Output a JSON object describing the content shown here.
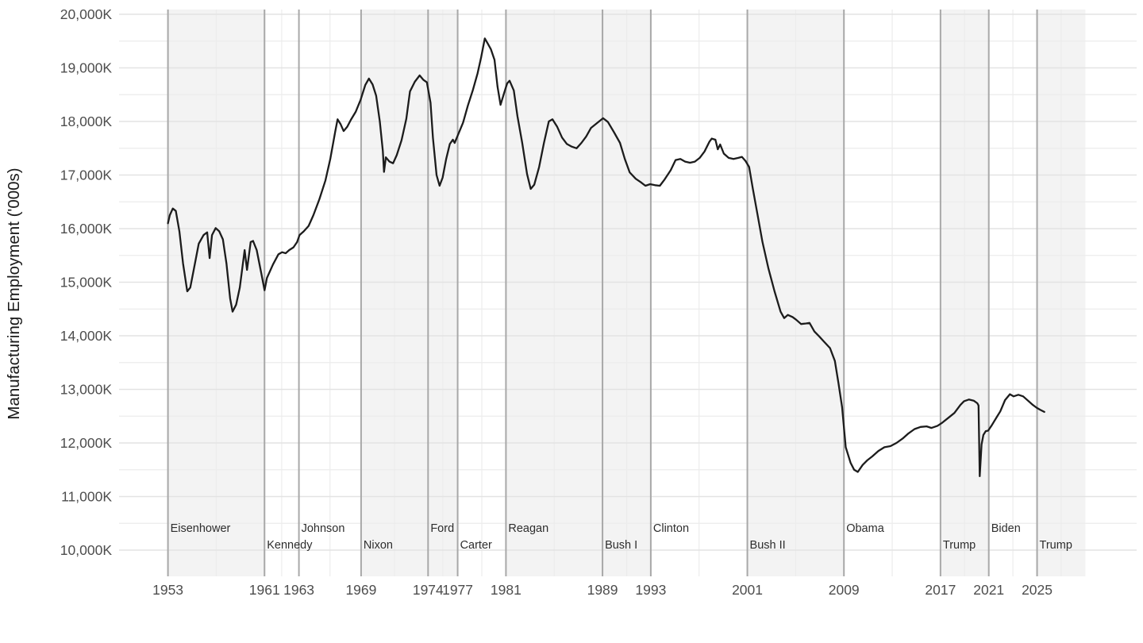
{
  "chart_data": {
    "type": "line",
    "title": "",
    "ylabel": "Manufacturing Employment ('000s)",
    "legend_position": "none",
    "grid": "on",
    "x_axis": {
      "ticks": [
        {
          "label": "1953",
          "year": 1953.05
        },
        {
          "label": "1961",
          "year": 1961.05
        },
        {
          "label": "1963",
          "year": 1963.9
        },
        {
          "label": "1969",
          "year": 1969.05
        },
        {
          "label": "1974",
          "year": 1974.6
        },
        {
          "label": "1977",
          "year": 1977.05
        },
        {
          "label": "1981",
          "year": 1981.05
        },
        {
          "label": "1989",
          "year": 1989.05
        },
        {
          "label": "1993",
          "year": 1993.05
        },
        {
          "label": "2001",
          "year": 2001.05
        },
        {
          "label": "2009",
          "year": 2009.05
        },
        {
          "label": "2017",
          "year": 2017.05
        },
        {
          "label": "2021",
          "year": 2021.05
        },
        {
          "label": "2025",
          "year": 2025.05
        }
      ],
      "range_years": [
        1949.0,
        2033.3
      ]
    },
    "y_axis": {
      "ticks": [
        {
          "label": "10,000K",
          "value": 10000
        },
        {
          "label": "11,000K",
          "value": 11000
        },
        {
          "label": "12,000K",
          "value": 12000
        },
        {
          "label": "13,000K",
          "value": 13000
        },
        {
          "label": "14,000K",
          "value": 14000
        },
        {
          "label": "15,000K",
          "value": 15000
        },
        {
          "label": "16,000K",
          "value": 16000
        },
        {
          "label": "17,000K",
          "value": 17000
        },
        {
          "label": "18,000K",
          "value": 18000
        },
        {
          "label": "19,000K",
          "value": 19000
        },
        {
          "label": "20,000K",
          "value": 20000
        }
      ],
      "minor_step": 500,
      "range": [
        10000,
        20000
      ]
    },
    "presidents": [
      {
        "name": "Eisenhower",
        "start": 1953.05,
        "end": 1961.05,
        "party": "R",
        "label_row": "upper"
      },
      {
        "name": "Kennedy",
        "start": 1961.05,
        "end": 1963.9,
        "party": "D",
        "label_row": "lower"
      },
      {
        "name": "Johnson",
        "start": 1963.9,
        "end": 1969.05,
        "party": "D",
        "label_row": "upper"
      },
      {
        "name": "Nixon",
        "start": 1969.05,
        "end": 1974.6,
        "party": "R",
        "label_row": "lower"
      },
      {
        "name": "Ford",
        "start": 1974.6,
        "end": 1977.05,
        "party": "R",
        "label_row": "upper"
      },
      {
        "name": "Carter",
        "start": 1977.05,
        "end": 1981.05,
        "party": "D",
        "label_row": "lower"
      },
      {
        "name": "Reagan",
        "start": 1981.05,
        "end": 1989.05,
        "party": "R",
        "label_row": "upper"
      },
      {
        "name": "Bush I",
        "start": 1989.05,
        "end": 1993.05,
        "party": "R",
        "label_row": "lower"
      },
      {
        "name": "Clinton",
        "start": 1993.05,
        "end": 2001.05,
        "party": "D",
        "label_row": "upper"
      },
      {
        "name": "Bush II",
        "start": 2001.05,
        "end": 2009.05,
        "party": "R",
        "label_row": "lower"
      },
      {
        "name": "Obama",
        "start": 2009.05,
        "end": 2017.05,
        "party": "D",
        "label_row": "upper"
      },
      {
        "name": "Trump",
        "start": 2017.05,
        "end": 2021.05,
        "party": "R",
        "label_row": "lower"
      },
      {
        "name": "Biden",
        "start": 2021.05,
        "end": 2025.05,
        "party": "D",
        "label_row": "upper"
      },
      {
        "name": "Trump",
        "start": 2025.05,
        "end": 2029.05,
        "party": "R",
        "label_row": "lower"
      }
    ],
    "series": [
      {
        "name": "Manufacturing Employment",
        "points": [
          [
            1953.05,
            16100
          ],
          [
            1953.2,
            16250
          ],
          [
            1953.45,
            16375
          ],
          [
            1953.7,
            16330
          ],
          [
            1954.0,
            15950
          ],
          [
            1954.3,
            15350
          ],
          [
            1954.65,
            14830
          ],
          [
            1954.9,
            14900
          ],
          [
            1955.2,
            15250
          ],
          [
            1955.6,
            15720
          ],
          [
            1956.0,
            15880
          ],
          [
            1956.3,
            15930
          ],
          [
            1956.5,
            15450
          ],
          [
            1956.7,
            15880
          ],
          [
            1957.0,
            16010
          ],
          [
            1957.3,
            15950
          ],
          [
            1957.6,
            15800
          ],
          [
            1957.9,
            15350
          ],
          [
            1958.2,
            14700
          ],
          [
            1958.4,
            14450
          ],
          [
            1958.7,
            14580
          ],
          [
            1959.0,
            14900
          ],
          [
            1959.4,
            15600
          ],
          [
            1959.6,
            15230
          ],
          [
            1959.9,
            15750
          ],
          [
            1960.1,
            15770
          ],
          [
            1960.4,
            15600
          ],
          [
            1960.8,
            15150
          ],
          [
            1961.05,
            14850
          ],
          [
            1961.25,
            15080
          ],
          [
            1961.75,
            15330
          ],
          [
            1962.2,
            15520
          ],
          [
            1962.5,
            15560
          ],
          [
            1962.8,
            15540
          ],
          [
            1963.1,
            15600
          ],
          [
            1963.45,
            15650
          ],
          [
            1963.75,
            15750
          ],
          [
            1963.95,
            15880
          ],
          [
            1964.3,
            15950
          ],
          [
            1964.7,
            16050
          ],
          [
            1965.1,
            16250
          ],
          [
            1965.6,
            16550
          ],
          [
            1966.1,
            16900
          ],
          [
            1966.5,
            17300
          ],
          [
            1966.9,
            17800
          ],
          [
            1967.1,
            18040
          ],
          [
            1967.35,
            17950
          ],
          [
            1967.6,
            17820
          ],
          [
            1967.9,
            17900
          ],
          [
            1968.2,
            18030
          ],
          [
            1968.6,
            18180
          ],
          [
            1969.0,
            18400
          ],
          [
            1969.4,
            18680
          ],
          [
            1969.7,
            18800
          ],
          [
            1970.0,
            18690
          ],
          [
            1970.3,
            18480
          ],
          [
            1970.6,
            18000
          ],
          [
            1970.85,
            17450
          ],
          [
            1970.95,
            17060
          ],
          [
            1971.1,
            17330
          ],
          [
            1971.4,
            17250
          ],
          [
            1971.7,
            17220
          ],
          [
            1972.0,
            17370
          ],
          [
            1972.4,
            17650
          ],
          [
            1972.8,
            18050
          ],
          [
            1973.1,
            18560
          ],
          [
            1973.5,
            18740
          ],
          [
            1973.9,
            18860
          ],
          [
            1974.2,
            18780
          ],
          [
            1974.5,
            18730
          ],
          [
            1974.8,
            18350
          ],
          [
            1975.0,
            17700
          ],
          [
            1975.3,
            17000
          ],
          [
            1975.55,
            16800
          ],
          [
            1975.8,
            16950
          ],
          [
            1976.1,
            17300
          ],
          [
            1976.4,
            17580
          ],
          [
            1976.65,
            17660
          ],
          [
            1976.8,
            17600
          ],
          [
            1977.1,
            17760
          ],
          [
            1977.5,
            17980
          ],
          [
            1977.9,
            18300
          ],
          [
            1978.3,
            18580
          ],
          [
            1978.7,
            18900
          ],
          [
            1979.0,
            19200
          ],
          [
            1979.3,
            19550
          ],
          [
            1979.55,
            19450
          ],
          [
            1979.8,
            19350
          ],
          [
            1980.1,
            19150
          ],
          [
            1980.35,
            18650
          ],
          [
            1980.6,
            18310
          ],
          [
            1980.9,
            18530
          ],
          [
            1981.15,
            18710
          ],
          [
            1981.35,
            18760
          ],
          [
            1981.7,
            18580
          ],
          [
            1982.0,
            18100
          ],
          [
            1982.4,
            17600
          ],
          [
            1982.8,
            17020
          ],
          [
            1983.1,
            16740
          ],
          [
            1983.4,
            16820
          ],
          [
            1983.8,
            17150
          ],
          [
            1984.2,
            17600
          ],
          [
            1984.6,
            18000
          ],
          [
            1984.9,
            18040
          ],
          [
            1985.3,
            17900
          ],
          [
            1985.7,
            17700
          ],
          [
            1986.1,
            17580
          ],
          [
            1986.5,
            17530
          ],
          [
            1986.9,
            17500
          ],
          [
            1987.3,
            17600
          ],
          [
            1987.7,
            17720
          ],
          [
            1988.1,
            17880
          ],
          [
            1988.6,
            17970
          ],
          [
            1989.1,
            18060
          ],
          [
            1989.5,
            17990
          ],
          [
            1990.0,
            17800
          ],
          [
            1990.5,
            17600
          ],
          [
            1990.9,
            17300
          ],
          [
            1991.3,
            17050
          ],
          [
            1991.8,
            16930
          ],
          [
            1992.2,
            16870
          ],
          [
            1992.6,
            16800
          ],
          [
            1993.0,
            16830
          ],
          [
            1993.4,
            16810
          ],
          [
            1993.8,
            16800
          ],
          [
            1994.2,
            16920
          ],
          [
            1994.7,
            17090
          ],
          [
            1995.1,
            17280
          ],
          [
            1995.5,
            17300
          ],
          [
            1995.9,
            17250
          ],
          [
            1996.3,
            17230
          ],
          [
            1996.7,
            17250
          ],
          [
            1997.1,
            17320
          ],
          [
            1997.5,
            17440
          ],
          [
            1997.9,
            17620
          ],
          [
            1998.1,
            17680
          ],
          [
            1998.4,
            17660
          ],
          [
            1998.6,
            17480
          ],
          [
            1998.8,
            17570
          ],
          [
            1999.1,
            17400
          ],
          [
            1999.5,
            17320
          ],
          [
            1999.9,
            17300
          ],
          [
            2000.3,
            17320
          ],
          [
            2000.6,
            17340
          ],
          [
            2000.9,
            17260
          ],
          [
            2001.2,
            17150
          ],
          [
            2001.5,
            16750
          ],
          [
            2001.9,
            16250
          ],
          [
            2002.3,
            15750
          ],
          [
            2002.8,
            15250
          ],
          [
            2003.3,
            14830
          ],
          [
            2003.8,
            14450
          ],
          [
            2004.1,
            14330
          ],
          [
            2004.4,
            14390
          ],
          [
            2004.8,
            14350
          ],
          [
            2005.1,
            14300
          ],
          [
            2005.5,
            14220
          ],
          [
            2005.9,
            14230
          ],
          [
            2006.2,
            14240
          ],
          [
            2006.6,
            14080
          ],
          [
            2007.0,
            13990
          ],
          [
            2007.4,
            13890
          ],
          [
            2007.9,
            13770
          ],
          [
            2008.3,
            13530
          ],
          [
            2008.6,
            13110
          ],
          [
            2008.9,
            12670
          ],
          [
            2009.2,
            11920
          ],
          [
            2009.6,
            11630
          ],
          [
            2009.9,
            11500
          ],
          [
            2010.2,
            11460
          ],
          [
            2010.6,
            11590
          ],
          [
            2011.0,
            11680
          ],
          [
            2011.4,
            11750
          ],
          [
            2011.9,
            11850
          ],
          [
            2012.4,
            11920
          ],
          [
            2012.9,
            11940
          ],
          [
            2013.4,
            12000
          ],
          [
            2013.9,
            12080
          ],
          [
            2014.4,
            12180
          ],
          [
            2014.9,
            12260
          ],
          [
            2015.4,
            12300
          ],
          [
            2015.9,
            12310
          ],
          [
            2016.3,
            12280
          ],
          [
            2016.8,
            12320
          ],
          [
            2017.2,
            12380
          ],
          [
            2017.7,
            12470
          ],
          [
            2018.2,
            12560
          ],
          [
            2018.7,
            12710
          ],
          [
            2019.0,
            12780
          ],
          [
            2019.4,
            12810
          ],
          [
            2019.8,
            12790
          ],
          [
            2020.1,
            12740
          ],
          [
            2020.2,
            12700
          ],
          [
            2020.3,
            11380
          ],
          [
            2020.45,
            11970
          ],
          [
            2020.6,
            12150
          ],
          [
            2020.8,
            12220
          ],
          [
            2021.0,
            12230
          ],
          [
            2021.3,
            12330
          ],
          [
            2021.7,
            12480
          ],
          [
            2022.0,
            12590
          ],
          [
            2022.4,
            12800
          ],
          [
            2022.8,
            12910
          ],
          [
            2023.1,
            12870
          ],
          [
            2023.5,
            12900
          ],
          [
            2023.9,
            12870
          ],
          [
            2024.3,
            12790
          ],
          [
            2024.7,
            12710
          ],
          [
            2025.0,
            12660
          ],
          [
            2025.3,
            12620
          ],
          [
            2025.65,
            12580
          ]
        ]
      }
    ],
    "colors": {
      "background": "#ffffff",
      "republican_band_fill": "#f3f3f3",
      "democrat_band_fill": "#ffffff",
      "major_hgrid": "#e3e3e3",
      "minor_grid": "#ececec",
      "transition_line": "#a8a8a8",
      "series_line": "#1c1c1c",
      "tick_text": "#4d4d4d",
      "president_text": "#2d2d2d",
      "axis_title_text": "#1a1a1a"
    }
  }
}
